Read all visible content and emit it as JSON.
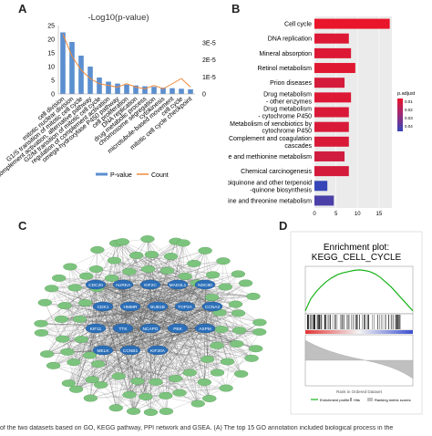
{
  "figure": {
    "panel_labels": [
      "A",
      "B",
      "C",
      "D"
    ],
    "caption": "of the two datasets based on GO, KEGG pathway, PPI network and GSEA. (A) The top 15 GO annotation included biological process in the"
  },
  "panelA": {
    "title": "-Log10(p-value)",
    "left_ticks": [
      "0",
      "5",
      "10",
      "15",
      "20",
      "25"
    ],
    "right_ticks": [
      "0",
      "1E-5",
      "2E-5",
      "3E-5"
    ],
    "legend": [
      "P-value",
      "Count"
    ],
    "colors": {
      "bar": "#5b8fd0",
      "line": "#f08a3c"
    }
  },
  "panelB": {
    "axis_ticks": [
      "0",
      "5",
      "10",
      "15"
    ],
    "legend_title": "p.adjust",
    "legend_ticks": [
      "0.01",
      "0.02",
      "0.03",
      "0.04"
    ]
  },
  "panelC": {
    "center_genes": [
      "CDC20",
      "AURKA",
      "KIF2C",
      "MAD2L1",
      "NDC80",
      "CDK1",
      "HMMR",
      "BUB1B",
      "TOP2A",
      "CCNA2",
      "KIF11",
      "TTK",
      "NCAPG",
      "PBK",
      "ASPM",
      "MELK",
      "CCNB1",
      "KIF20A"
    ],
    "node_color": "#7cc47e",
    "center_color": "#2c6fb8"
  },
  "panelD": {
    "title_line1": "Enrichment plot:",
    "title_line2": "KEGG_CELL_CYCLE",
    "legend": [
      "Enrichment profile",
      "Hits",
      "Ranking metric scores"
    ],
    "xlabel": "Rank in Ordered Dataset"
  },
  "chart_data": [
    {
      "type": "bar",
      "title": "-Log10(p-value)",
      "categories": [
        "cell division",
        "mitotic nuclear division",
        "G1/S transition of mitotic cell cycle",
        "complement activation, alternative pathway",
        "G2/M transition of mitotic cell cycle",
        "regulation of complement activation",
        "omega-hydroxylase P450 pathway",
        "cell proliferation",
        "DNA replication",
        "drug metabolic process",
        "chromosome segregation",
        "cytokinesis",
        "microtubule-based movement",
        "cell cycle",
        "mitotic cell cycle checkpoint"
      ],
      "series": [
        {
          "name": "P-value",
          "values": [
            22.5,
            19,
            14,
            10,
            6,
            4.5,
            3.8,
            3.4,
            3.1,
            2.8,
            2.6,
            2.3,
            2.1,
            1.9,
            1.7
          ]
        },
        {
          "name": "Count",
          "values": [
            3.5e-05,
            2.2e-05,
            1.4e-05,
            9e-06,
            6e-06,
            5e-06,
            4e-06,
            6e-06,
            4e-06,
            3e-06,
            5e-06,
            3e-06,
            6e-06,
            9e-06,
            4e-06
          ]
        }
      ],
      "ylim": [
        0,
        25
      ],
      "y2lim": [
        0,
        4e-05
      ],
      "legend": "bottom"
    },
    {
      "type": "bar",
      "orientation": "horizontal",
      "categories": [
        "Cell cycle",
        "DNA replication",
        "Mineral absorption",
        "Retinol metabolism",
        "Prion diseases",
        "Drug metabolism\n- other enzymes",
        "Drug metabolism\n- cytochrome P450",
        "Metabolism of xenobiotics by\ncytochrome P450",
        "Complement and coagulation\ncascades",
        "Cysteine and methionine metabolism",
        "Chemical carcinogenesis",
        "Ubiquinone and other terpenoid\n-quinone biosynthesis",
        "Glycine, serine and threonine metabolism"
      ],
      "values": [
        17.5,
        8,
        8.5,
        9.5,
        7,
        8.5,
        8,
        8,
        8,
        7,
        8,
        3,
        4.5
      ],
      "p_adjust": [
        0.001,
        0.004,
        0.004,
        0.003,
        0.006,
        0.004,
        0.005,
        0.005,
        0.005,
        0.007,
        0.006,
        0.045,
        0.04
      ],
      "xlim": [
        0,
        18
      ],
      "colorscale": [
        "#e8152b",
        "#3646b8"
      ]
    },
    {
      "type": "line",
      "title": "Enrichment plot:\nKEGG_CELL_CYCLE",
      "xlabel": "Rank in Ordered Dataset",
      "x": [
        0,
        5,
        10,
        15,
        20,
        25,
        30,
        35,
        40,
        45,
        50,
        55,
        60,
        65,
        70,
        75,
        80,
        85,
        90,
        95,
        100
      ],
      "values": [
        0.0,
        0.2,
        0.32,
        0.42,
        0.5,
        0.56,
        0.61,
        0.64,
        0.66,
        0.68,
        0.69,
        0.68,
        0.66,
        0.62,
        0.56,
        0.48,
        0.4,
        0.3,
        0.2,
        0.1,
        0.0
      ],
      "ylim": [
        -0.05,
        0.75
      ]
    }
  ]
}
